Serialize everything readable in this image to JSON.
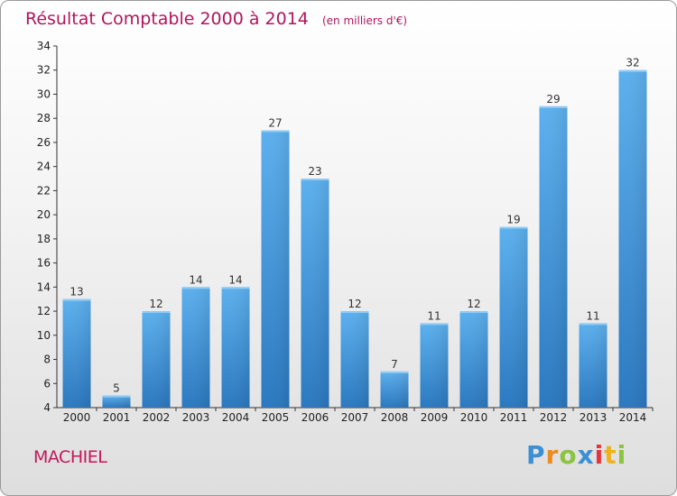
{
  "chart_data": {
    "type": "bar",
    "title": "Résultat Comptable 2000 à 2014",
    "subtitle": "(en milliers d'€)",
    "categories": [
      "2000",
      "2001",
      "2002",
      "2003",
      "2004",
      "2005",
      "2006",
      "2007",
      "2008",
      "2009",
      "2010",
      "2011",
      "2012",
      "2013",
      "2014"
    ],
    "values": [
      13,
      5,
      12,
      14,
      14,
      27,
      23,
      12,
      7,
      11,
      12,
      19,
      29,
      11,
      32
    ],
    "ylim": [
      4,
      34
    ],
    "yticks": [
      4,
      6,
      8,
      10,
      12,
      14,
      16,
      18,
      20,
      22,
      24,
      26,
      28,
      30,
      32,
      34
    ],
    "xlabel": "",
    "ylabel": "",
    "grid": false,
    "bar_color": "#4a9ee0"
  },
  "commune": "MACHIEL",
  "logo": {
    "text": "Proxiti",
    "letters": [
      "P",
      "r",
      "o",
      "x",
      "i",
      "t",
      "i"
    ],
    "colors": [
      "#3a8fd6",
      "#f08a1c",
      "#8bc43f",
      "#3a8fd6",
      "#e8323c",
      "#f0b21c",
      "#8bc43f"
    ]
  }
}
